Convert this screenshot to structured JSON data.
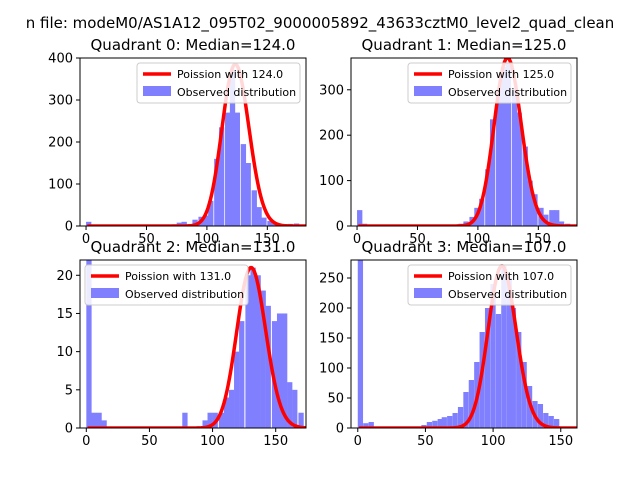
{
  "figure": {
    "suptitle": "n file: modeM0/AS1A12_095T02_9000005892_43633cztM0_level2_quad_clean"
  },
  "colors": {
    "fit_line": "#ff0000",
    "hist_fill": "#8080ff",
    "axes": "#000000",
    "background": "#ffffff"
  },
  "chart_data": [
    {
      "type": "bar",
      "title": "Quadrant 0: Median=124.0",
      "xlabel": "",
      "ylabel": "",
      "xlim": [
        -5,
        182
      ],
      "ylim": [
        0,
        400
      ],
      "xticks": [
        0,
        50,
        100,
        150
      ],
      "yticks": [
        0,
        100,
        200,
        300,
        400
      ],
      "bin_width": 4.4,
      "bins_start": [
        0,
        22,
        40,
        57,
        71,
        75,
        79,
        84,
        88,
        93,
        97,
        101,
        106,
        110,
        115,
        119,
        123,
        128,
        132,
        137,
        141,
        145,
        150,
        154,
        159,
        163,
        167,
        172
      ],
      "values": [
        10,
        2,
        3,
        2,
        4,
        8,
        10,
        3,
        15,
        22,
        25,
        60,
        160,
        235,
        270,
        372,
        270,
        195,
        150,
        85,
        45,
        20,
        12,
        5,
        2,
        3,
        5,
        6
      ],
      "series": [
        {
          "name": "Poission with 124.0",
          "kind": "line",
          "mean": 124.0,
          "peak": 385
        },
        {
          "name": "Observed distribution",
          "kind": "hist"
        }
      ],
      "legend": "top-right"
    },
    {
      "type": "bar",
      "title": "Quadrant 1: Median=125.0",
      "xlabel": "",
      "ylabel": "",
      "xlim": [
        -5,
        182
      ],
      "ylim": [
        0,
        370
      ],
      "xticks": [
        0,
        50,
        100,
        150
      ],
      "yticks": [
        0,
        100,
        200,
        300
      ],
      "bin_width": 4.4,
      "bins_start": [
        0,
        4,
        65,
        84,
        88,
        93,
        97,
        101,
        106,
        110,
        115,
        119,
        123,
        128,
        132,
        137,
        141,
        145,
        150,
        154,
        159,
        163,
        167,
        172
      ],
      "values": [
        35,
        5,
        2,
        5,
        10,
        20,
        40,
        60,
        125,
        235,
        300,
        350,
        360,
        300,
        250,
        175,
        100,
        70,
        40,
        25,
        35,
        35,
        10,
        5
      ],
      "series": [
        {
          "name": "Poission with 125.0",
          "kind": "line",
          "mean": 125.0,
          "peak": 370
        },
        {
          "name": "Observed distribution",
          "kind": "hist"
        }
      ],
      "legend": "top-right"
    },
    {
      "type": "bar",
      "title": "Quadrant 2: Median=131.0",
      "xlabel": "",
      "ylabel": "",
      "xlim": [
        -5,
        174
      ],
      "ylim": [
        0,
        22
      ],
      "xticks": [
        0,
        50,
        100,
        150
      ],
      "yticks": [
        0,
        5,
        10,
        15,
        20
      ],
      "bin_width": 4.2,
      "bins_start": [
        0,
        4,
        8,
        12,
        76,
        92,
        96,
        100,
        105,
        109,
        113,
        117,
        121,
        126,
        130,
        134,
        138,
        142,
        147,
        151,
        155,
        159,
        163,
        168
      ],
      "values": [
        22,
        2,
        2,
        1,
        2,
        1,
        2,
        2,
        2,
        4,
        5,
        10,
        14,
        20,
        21,
        20,
        18,
        16,
        14,
        15,
        15,
        6,
        5,
        2
      ],
      "series": [
        {
          "name": "Poission with 131.0",
          "kind": "line",
          "mean": 131.0,
          "peak": 21
        },
        {
          "name": "Observed distribution",
          "kind": "hist"
        }
      ],
      "legend": "top-left"
    },
    {
      "type": "bar",
      "title": "Quadrant 3: Median=107.0",
      "xlabel": "",
      "ylabel": "",
      "xlim": [
        -5,
        162
      ],
      "ylim": [
        0,
        280
      ],
      "xticks": [
        0,
        50,
        100,
        150
      ],
      "yticks": [
        0,
        50,
        100,
        150,
        200,
        250
      ],
      "bin_width": 3.9,
      "bins_start": [
        0,
        4,
        8,
        39,
        47,
        51,
        55,
        59,
        62,
        66,
        70,
        74,
        78,
        82,
        86,
        90,
        94,
        98,
        102,
        106,
        110,
        113,
        117,
        121,
        125,
        129,
        133,
        137,
        141,
        145
      ],
      "values": [
        280,
        8,
        10,
        2,
        5,
        10,
        12,
        15,
        18,
        20,
        25,
        35,
        60,
        80,
        110,
        160,
        200,
        240,
        190,
        270,
        250,
        200,
        160,
        110,
        70,
        45,
        40,
        25,
        20,
        15
      ],
      "series": [
        {
          "name": "Poission with 107.0",
          "kind": "line",
          "mean": 107.0,
          "peak": 270
        },
        {
          "name": "Observed distribution",
          "kind": "hist"
        }
      ],
      "legend": "top-right"
    }
  ]
}
